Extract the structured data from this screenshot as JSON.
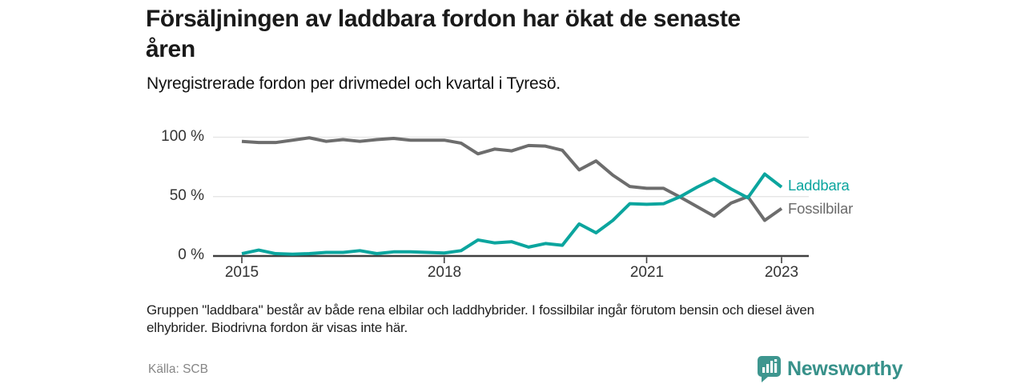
{
  "header": {
    "title_line1": "Försäljningen av laddbara fordon har ökat de senaste",
    "title_line2": "åren",
    "subtitle": "Nyregistrerade fordon per drivmedel och kvartal i Tyresö."
  },
  "chart_data": {
    "type": "line",
    "x_unit": "quarter",
    "quarters": [
      "2015 Q1",
      "2015 Q2",
      "2015 Q3",
      "2015 Q4",
      "2016 Q1",
      "2016 Q2",
      "2016 Q3",
      "2016 Q4",
      "2017 Q1",
      "2017 Q2",
      "2017 Q3",
      "2017 Q4",
      "2018 Q1",
      "2018 Q2",
      "2018 Q3",
      "2018 Q4",
      "2019 Q1",
      "2019 Q2",
      "2019 Q3",
      "2019 Q4",
      "2020 Q1",
      "2020 Q2",
      "2020 Q3",
      "2020 Q4",
      "2021 Q1",
      "2021 Q2",
      "2021 Q3",
      "2021 Q4",
      "2022 Q1",
      "2022 Q2",
      "2022 Q3",
      "2022 Q4",
      "2023 Q1"
    ],
    "series": [
      {
        "name": "Fossilbilar",
        "color": "#6d6d6d",
        "values": [
          96.5,
          95.5,
          95.5,
          97.5,
          99.5,
          96.5,
          98,
          96.5,
          98,
          99,
          97.5,
          97.5,
          97.5,
          95,
          86,
          90,
          88.5,
          93,
          92.5,
          89,
          72.5,
          80,
          68,
          58.5,
          57,
          57,
          49.5,
          41.5,
          33.5,
          44.5,
          50,
          30,
          40
        ]
      },
      {
        "name": "Laddbara",
        "color": "#0ba59e",
        "values": [
          2,
          5,
          2,
          1.5,
          2,
          3,
          3,
          4.5,
          2,
          3.5,
          3.5,
          3,
          2.5,
          4.5,
          13.5,
          11,
          12,
          7.5,
          10.5,
          9,
          27,
          19.5,
          30,
          44,
          43.5,
          44,
          50,
          58,
          65,
          56.5,
          49,
          69,
          58
        ]
      }
    ],
    "yticks": [
      {
        "label": "0 %",
        "value": 0
      },
      {
        "label": "50 %",
        "value": 50
      },
      {
        "label": "100 %",
        "value": 100
      }
    ],
    "xticks": [
      {
        "label": "2015",
        "q": 0
      },
      {
        "label": "2018",
        "q": 12
      },
      {
        "label": "2021",
        "q": 24
      },
      {
        "label": "2023",
        "q": 32
      }
    ],
    "ylim": [
      0,
      100
    ],
    "grid": "horizontal",
    "legend_position": "end-of-line"
  },
  "footnote": {
    "line1": "Gruppen \"laddbara\" består av både rena elbilar och laddhybrider. I fossilbilar ingår förutom bensin och diesel även",
    "line2": "elhybrider. Biodrivna fordon är visas inte här."
  },
  "source": "Källa: SCB",
  "logo": {
    "text": "Newsworthy",
    "icon": "newsworthy-bar-chart-speech-bubble-icon",
    "accent_color": "#3e968f"
  }
}
